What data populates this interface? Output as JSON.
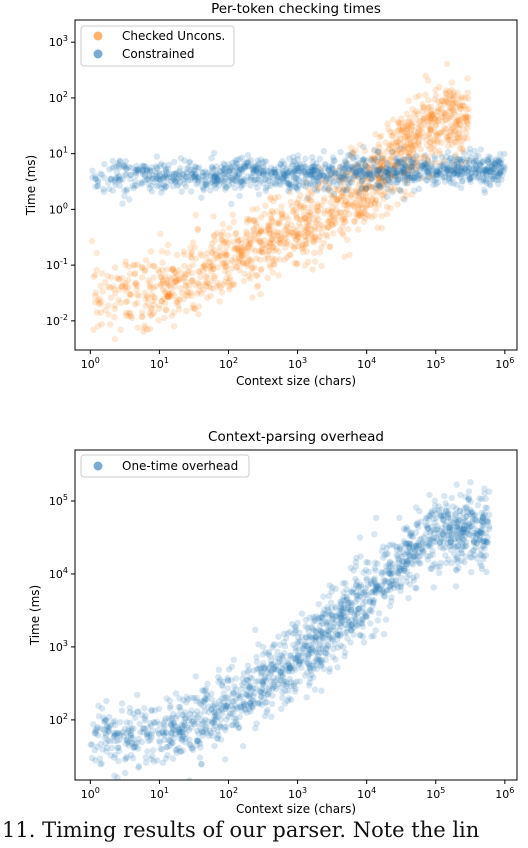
{
  "chart_data": [
    {
      "type": "scatter",
      "title": "Per-token checking times",
      "xlabel": "Context size (chars)",
      "ylabel": "Time (ms)",
      "xscale": "log",
      "yscale": "log",
      "xlim": [
        0.6,
        1500000
      ],
      "ylim": [
        0.003,
        2500
      ],
      "xticks": [
        "10^0",
        "10^1",
        "10^2",
        "10^3",
        "10^4",
        "10^5",
        "10^6"
      ],
      "yticks": [
        "10^-2",
        "10^-1",
        "10^0",
        "10^1",
        "10^2",
        "10^3"
      ],
      "legend": "top-left",
      "grid": false,
      "series": [
        {
          "name": "Checked Uncons.",
          "color": "#ff7f0e",
          "trend": {
            "x": [
              1,
              10,
              100,
              1000,
              10000,
              100000
            ],
            "y": [
              0.03,
              0.03,
              0.12,
              0.4,
              2.5,
              40
            ]
          },
          "spread_decades": 0.35,
          "x_range": [
            1,
            300000
          ]
        },
        {
          "name": "Constrained",
          "color": "#1f77b4",
          "trend": {
            "x": [
              1,
              10,
              100,
              1000,
              10000,
              100000,
              1000000
            ],
            "y": [
              4,
              4,
              4,
              4.5,
              4.5,
              5,
              5
            ]
          },
          "spread_decades": 0.15,
          "x_range": [
            1,
            1000000
          ]
        }
      ]
    },
    {
      "type": "scatter",
      "title": "Context-parsing overhead",
      "xlabel": "Context size (chars)",
      "ylabel": "Time (ms)",
      "xscale": "log",
      "yscale": "log",
      "xlim": [
        0.6,
        1500000
      ],
      "ylim": [
        15,
        500000
      ],
      "xticks": [
        "10^0",
        "10^1",
        "10^2",
        "10^3",
        "10^4",
        "10^5",
        "10^6"
      ],
      "yticks": [
        "10^2",
        "10^3",
        "10^4",
        "10^5"
      ],
      "legend": "top-left",
      "grid": false,
      "series": [
        {
          "name": "One-time overhead",
          "color": "#1f77b4",
          "trend": {
            "x": [
              1,
              10,
              100,
              1000,
              10000,
              100000
            ],
            "y": [
              60,
              60,
              150,
              600,
              5000,
              40000
            ]
          },
          "spread_decades": 0.25,
          "x_range": [
            1,
            600000
          ]
        }
      ]
    }
  ],
  "caption": "11. Timing results of our parser. Note the lin"
}
